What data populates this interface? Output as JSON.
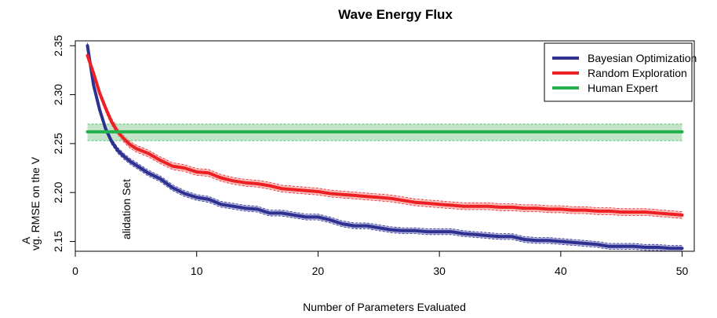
{
  "chart_data": {
    "type": "line",
    "title": "Wave Energy Flux",
    "xlabel": "Number of Parameters Evaluated",
    "ylabel_parts": [
      "A",
      "vg. RMSE on the V",
      "alidation Set"
    ],
    "xlim": [
      0,
      51
    ],
    "ylim": [
      2.14,
      2.355
    ],
    "xticks": [
      0,
      10,
      20,
      30,
      40,
      50
    ],
    "yticks": [
      2.15,
      2.2,
      2.25,
      2.3,
      2.35
    ],
    "xtick_labels": [
      "0",
      "10",
      "20",
      "30",
      "40",
      "50"
    ],
    "ytick_labels": [
      "2.15",
      "2.20",
      "2.25",
      "2.30",
      "2.35"
    ],
    "grid": false,
    "legend_position": "top-right",
    "series": [
      {
        "name": "Bayesian Optimization",
        "color": "#2e3192",
        "band_color": "#9a9acb",
        "band_halfwidth": 0.003,
        "x": [
          1,
          1.5,
          2,
          2.5,
          3,
          3.5,
          4,
          4.5,
          5,
          6,
          7,
          8,
          9,
          10,
          11,
          12,
          13,
          14,
          15,
          16,
          17,
          18,
          19,
          20,
          21,
          22,
          23,
          24,
          25,
          26,
          27,
          28,
          29,
          30,
          31,
          32,
          33,
          34,
          35,
          36,
          37,
          38,
          39,
          40,
          41,
          42,
          43,
          44,
          45,
          46,
          47,
          48,
          49,
          50
        ],
        "values": [
          2.35,
          2.31,
          2.285,
          2.265,
          2.252,
          2.243,
          2.237,
          2.232,
          2.228,
          2.22,
          2.214,
          2.205,
          2.199,
          2.195,
          2.193,
          2.188,
          2.186,
          2.184,
          2.183,
          2.179,
          2.179,
          2.177,
          2.175,
          2.175,
          2.172,
          2.168,
          2.166,
          2.166,
          2.164,
          2.162,
          2.161,
          2.161,
          2.16,
          2.16,
          2.16,
          2.158,
          2.157,
          2.156,
          2.155,
          2.155,
          2.152,
          2.151,
          2.151,
          2.15,
          2.149,
          2.148,
          2.147,
          2.145,
          2.145,
          2.145,
          2.144,
          2.144,
          2.143,
          2.143
        ]
      },
      {
        "name": "Random Exploration",
        "color": "#ee2024",
        "band_color": "#f4a6a3",
        "band_halfwidth": 0.0035,
        "x": [
          1,
          1.5,
          2,
          2.5,
          3,
          3.5,
          4,
          4.5,
          5,
          6,
          7,
          8,
          9,
          10,
          11,
          12,
          13,
          14,
          15,
          16,
          17,
          18,
          19,
          20,
          21,
          22,
          23,
          24,
          25,
          26,
          27,
          28,
          29,
          30,
          31,
          32,
          33,
          34,
          35,
          36,
          37,
          38,
          39,
          40,
          41,
          42,
          43,
          44,
          45,
          46,
          47,
          48,
          49,
          50
        ],
        "values": [
          2.34,
          2.322,
          2.302,
          2.286,
          2.272,
          2.262,
          2.255,
          2.249,
          2.245,
          2.24,
          2.233,
          2.227,
          2.225,
          2.221,
          2.22,
          2.215,
          2.212,
          2.21,
          2.209,
          2.207,
          2.204,
          2.203,
          2.202,
          2.201,
          2.199,
          2.198,
          2.197,
          2.196,
          2.195,
          2.194,
          2.192,
          2.19,
          2.189,
          2.188,
          2.187,
          2.186,
          2.186,
          2.186,
          2.185,
          2.185,
          2.184,
          2.184,
          2.183,
          2.183,
          2.182,
          2.182,
          2.181,
          2.181,
          2.18,
          2.18,
          2.18,
          2.179,
          2.178,
          2.177
        ]
      },
      {
        "name": "Human Expert",
        "color": "#22b14c",
        "band_color": "#a9d8b1",
        "band_low": 2.253,
        "band_high": 2.27,
        "x": [
          1,
          50
        ],
        "values": [
          2.262,
          2.262
        ]
      }
    ]
  }
}
